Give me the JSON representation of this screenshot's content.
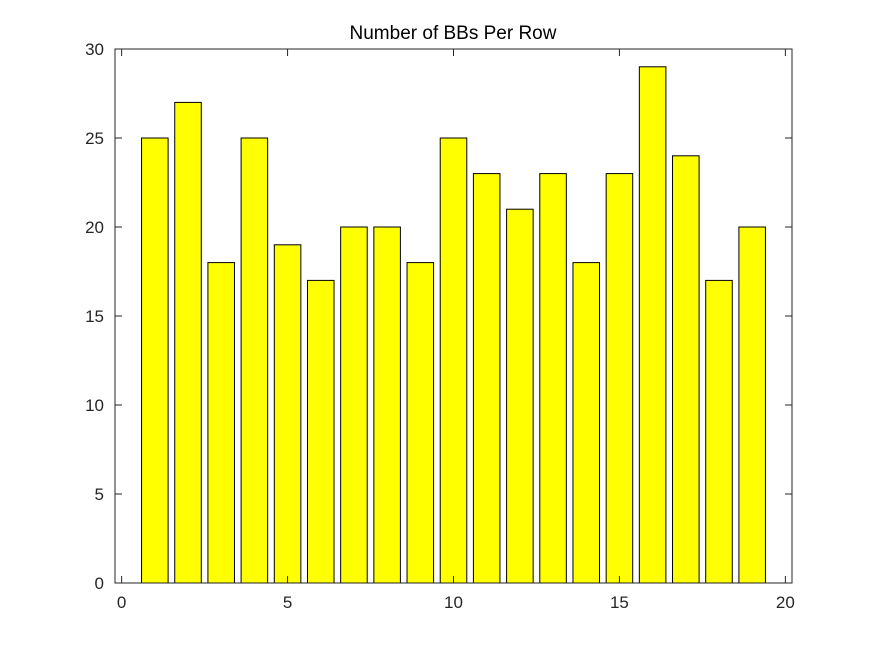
{
  "figure": {
    "background": "#ffffff"
  },
  "chart_data": {
    "type": "bar",
    "title": "Number of BBs Per Row",
    "xlabel": "",
    "ylabel": "",
    "x": [
      1,
      2,
      3,
      4,
      5,
      6,
      7,
      8,
      9,
      10,
      11,
      12,
      13,
      14,
      15,
      16,
      17,
      18,
      19
    ],
    "values": [
      25,
      27,
      18,
      25,
      19,
      17,
      20,
      20,
      18,
      25,
      23,
      21,
      23,
      18,
      23,
      29,
      24,
      17,
      20
    ],
    "xlim": [
      -0.2,
      20.2
    ],
    "ylim": [
      0,
      30
    ],
    "xticks": [
      0,
      5,
      10,
      15,
      20
    ],
    "yticks": [
      0,
      5,
      10,
      15,
      20,
      25,
      30
    ],
    "grid": false,
    "legend": "none",
    "bar_color": "#ffff00",
    "edge_color": "#000000"
  }
}
